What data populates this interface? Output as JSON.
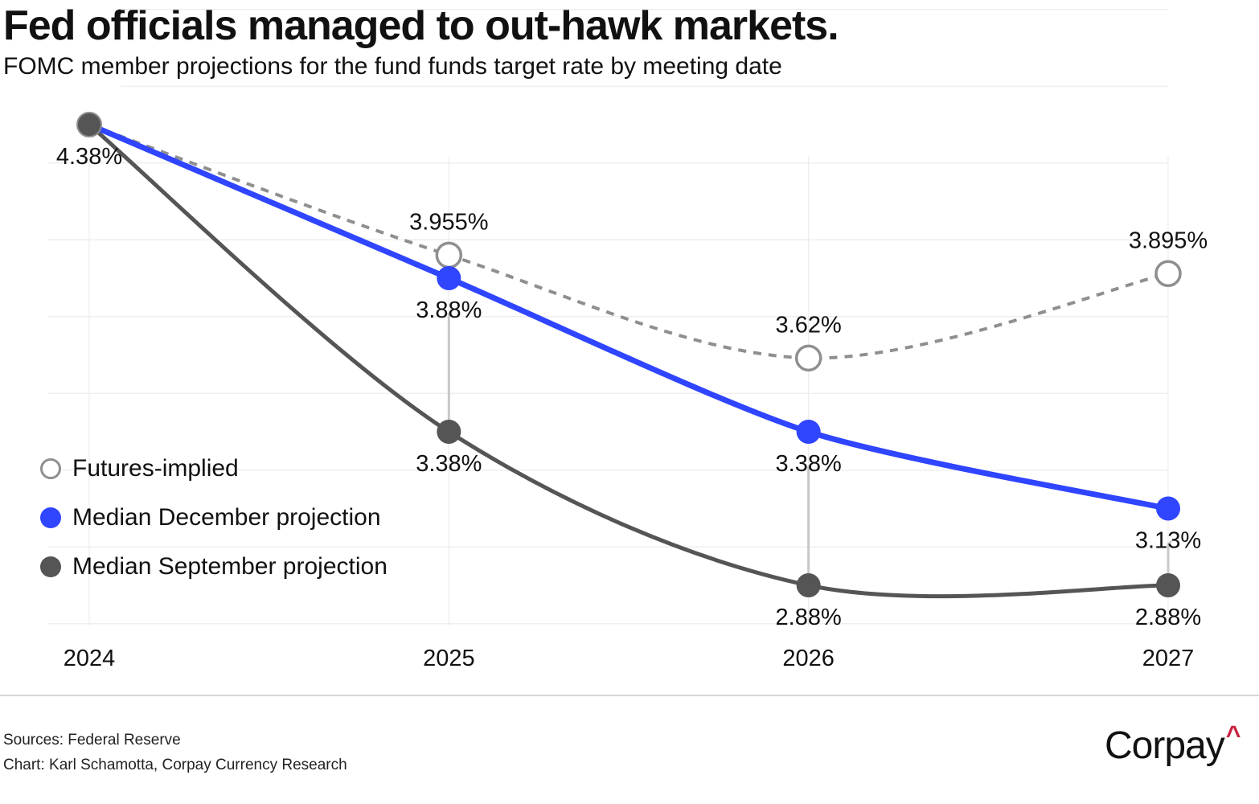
{
  "title": "Fed officials managed to out-hawk markets.",
  "subtitle": "FOMC member projections for the fund funds target rate by meeting date",
  "colors": {
    "futures": "#8f8f8f",
    "december": "#2f45ff",
    "september": "#555555",
    "arrow": "#c8c8c8",
    "grid": "#ececec",
    "brand_accent": "#c8213f"
  },
  "chart_data": {
    "type": "line",
    "title": "Fed officials managed to out-hawk markets.",
    "subtitle": "FOMC member projections for the fund funds target rate by meeting date",
    "xlabel": "",
    "ylabel": "",
    "x": [
      "2024",
      "2025",
      "2026",
      "2027"
    ],
    "ylim": [
      2.755,
      4.755
    ],
    "grid": true,
    "legend_position": "left-middle",
    "series": [
      {
        "name": "Futures-implied",
        "style": "dashed-open-markers",
        "values": [
          4.38,
          3.955,
          3.62,
          3.895
        ],
        "labels": [
          null,
          "3.955%",
          "3.62%",
          "3.895%"
        ],
        "label_position": "above"
      },
      {
        "name": "Median December projection",
        "style": "solid-filled-markers",
        "values": [
          4.38,
          3.88,
          3.38,
          3.13
        ],
        "labels": [
          null,
          "3.88%",
          "3.38%",
          "3.13%"
        ],
        "label_position": "below"
      },
      {
        "name": "Median September projection",
        "style": "solid-filled-markers",
        "values": [
          4.38,
          3.38,
          2.88,
          2.88
        ],
        "labels": [
          "4.38%",
          "3.38%",
          "2.88%",
          "2.88%"
        ],
        "label_position": "below"
      }
    ],
    "annotations": [
      {
        "type": "arrow",
        "x": "2025",
        "from": 3.38,
        "to": 3.88
      },
      {
        "type": "arrow",
        "x": "2026",
        "from": 2.88,
        "to": 3.38
      },
      {
        "type": "arrow",
        "x": "2027",
        "from": 2.88,
        "to": 3.13
      }
    ]
  },
  "legend": [
    {
      "key": "futures",
      "label": "Futures-implied"
    },
    {
      "key": "december",
      "label": "Median December projection"
    },
    {
      "key": "september",
      "label": "Median September projection"
    }
  ],
  "footer": {
    "sources": "Sources: Federal Reserve",
    "credit": "Chart: Karl Schamotta, Corpay Currency Research"
  },
  "logo": {
    "text": "Corpay",
    "mark": "^"
  }
}
